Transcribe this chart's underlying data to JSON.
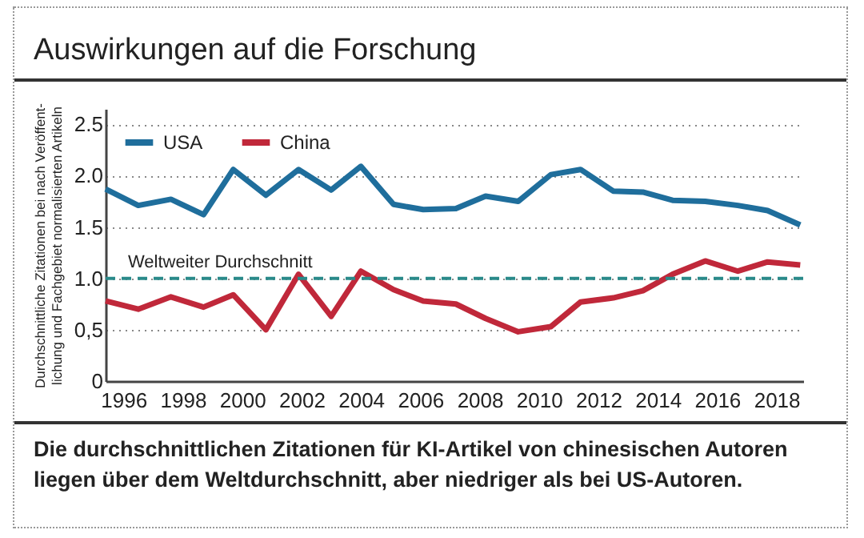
{
  "chart_data": {
    "type": "line",
    "title": "Auswirkungen auf die Forschung",
    "ylabel": "Durchschnittliche Zitationen bei nach Veröffent-\nlichung und Fachgebiet normalisierten Artikeln",
    "x": [
      1995.4,
      1996.5,
      1997.6,
      1998.7,
      1999.7,
      2000.8,
      2001.9,
      2003.0,
      2004.0,
      2005.1,
      2006.1,
      2007.2,
      2008.2,
      2009.3,
      2010.4,
      2011.4,
      2012.5,
      2013.5,
      2014.5,
      2015.6,
      2016.7,
      2017.7,
      2018.8
    ],
    "series": [
      {
        "name": "USA",
        "color": "#1f6e9c",
        "values": [
          1.87,
          1.71,
          1.77,
          1.62,
          2.06,
          1.81,
          2.06,
          1.86,
          2.09,
          1.72,
          1.67,
          1.68,
          1.8,
          1.75,
          2.01,
          2.06,
          1.85,
          1.84,
          1.76,
          1.75,
          1.71,
          1.66,
          1.52
        ]
      },
      {
        "name": "China",
        "color": "#c0283a",
        "values": [
          0.78,
          0.7,
          0.82,
          0.72,
          0.84,
          0.5,
          1.04,
          0.63,
          1.07,
          0.89,
          0.78,
          0.75,
          0.61,
          0.48,
          0.53,
          0.77,
          0.81,
          0.88,
          1.04,
          1.17,
          1.07,
          1.16,
          1.13
        ]
      }
    ],
    "xlim": [
      1995.4,
      2018.9
    ],
    "xticks": [
      1996,
      1998,
      2000,
      2002,
      2004,
      2006,
      2008,
      2010,
      2012,
      2014,
      2016,
      2018
    ],
    "ylim": [
      0,
      2.65
    ],
    "yticks": [
      0,
      {
        "value": 0.5,
        "label": "0,5"
      },
      {
        "value": 1,
        "label": "1.0"
      },
      {
        "value": 1.5,
        "label": "1.5"
      },
      {
        "value": 2,
        "label": "2.0"
      },
      {
        "value": 2.5,
        "label": "2.5"
      }
    ],
    "ref_lines": [
      {
        "axis": "y",
        "value": 1,
        "label": "Weltweiter Durchschnitt",
        "color": "#2a8a8a",
        "line_style": "dashed"
      }
    ],
    "grid": "y",
    "legend": "top left",
    "annotations": [
      "Die durchschnittlichen Zitationen für KI-Artikel von chinesischen Autoren liegen über dem Weltdurchschnitt, aber niedriger als bei US-Autoren."
    ]
  }
}
